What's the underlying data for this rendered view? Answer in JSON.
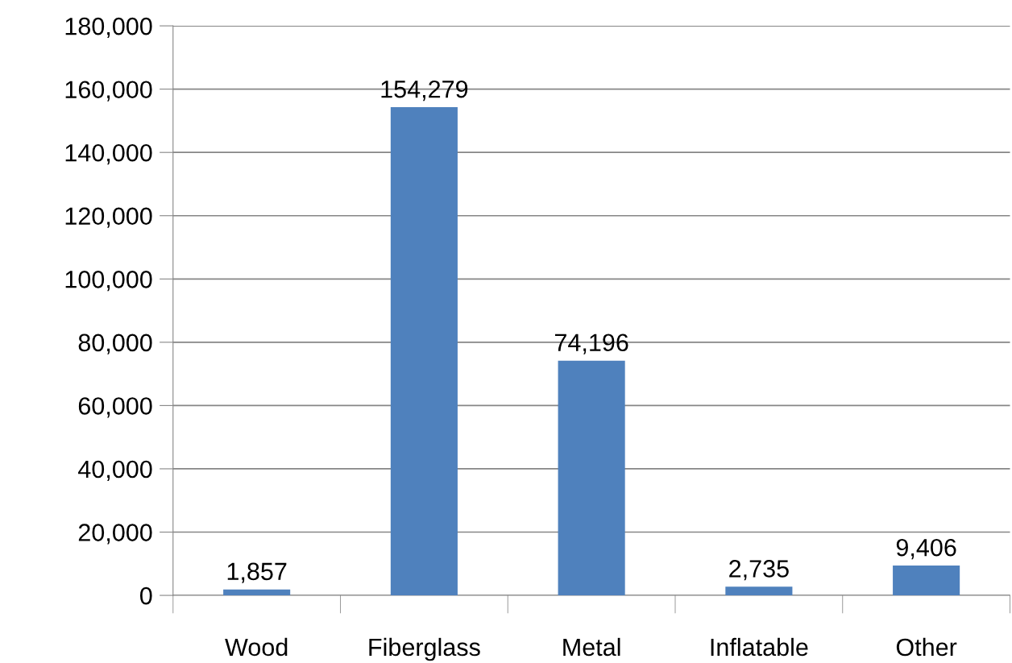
{
  "chart_data": {
    "type": "bar",
    "categories": [
      "Wood",
      "Fiberglass",
      "Metal",
      "Inflatable",
      "Other"
    ],
    "values": [
      1857,
      154279,
      74196,
      2735,
      9406
    ],
    "value_labels": [
      "1,857",
      "154,279",
      "74,196",
      "2,735",
      "9,406"
    ],
    "color": "#4f81bd",
    "ylim": [
      0,
      180000
    ],
    "yticks": [
      {
        "value": 0,
        "label": "0"
      },
      {
        "value": 20000,
        "label": "20,000"
      },
      {
        "value": 40000,
        "label": "40,000"
      },
      {
        "value": 60000,
        "label": "60,000"
      },
      {
        "value": 80000,
        "label": "80,000"
      },
      {
        "value": 100000,
        "label": "100,000"
      },
      {
        "value": 120000,
        "label": "120,000"
      },
      {
        "value": 140000,
        "label": "140,000"
      },
      {
        "value": 160000,
        "label": "160,000"
      },
      {
        "value": 180000,
        "label": "180,000"
      }
    ],
    "grid": "y",
    "legend": false
  }
}
